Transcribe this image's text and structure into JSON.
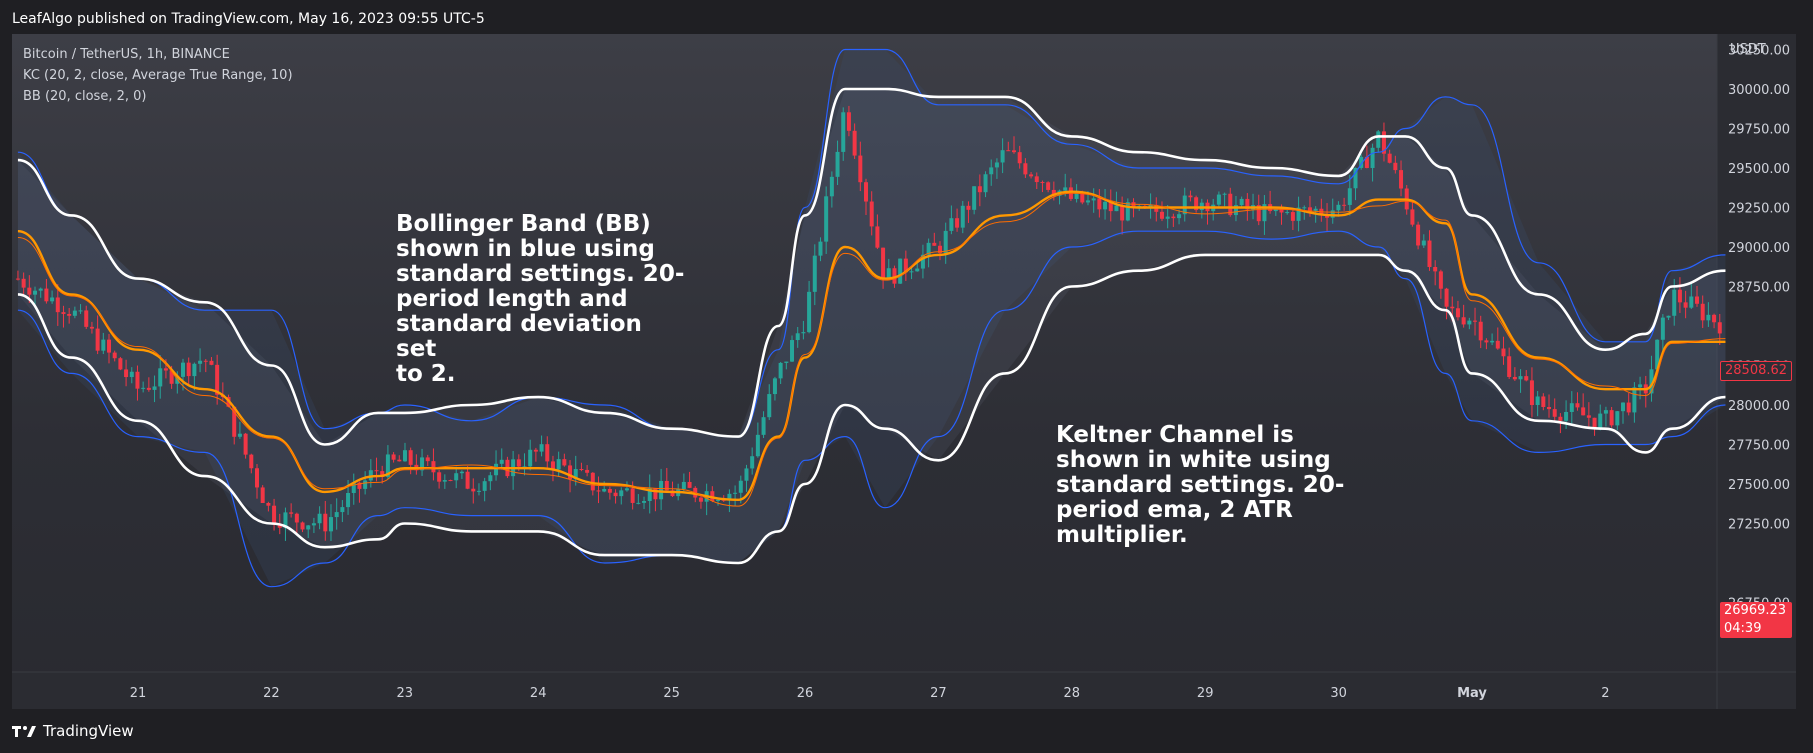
{
  "header": {
    "published": "LeafAlgo published on TradingView.com, May 16, 2023 09:55 UTC-5"
  },
  "legend": {
    "symbol": "Bitcoin / TetherUS, 1h, BINANCE",
    "kc": "KC (20, 2, close, Average True Range, 10)",
    "bb": "BB (20, close, 2, 0)"
  },
  "annotations": {
    "bb_note": "Bollinger Band (BB)\nshown in blue using\nstandard settings. 20-\nperiod length and\nstandard deviation set\nto 2.",
    "kc_note": "Keltner Channel is\nshown in white using\nstandard settings. 20-\nperiod ema, 2 ATR\nmultiplier."
  },
  "price_axis": {
    "unit": "USDT",
    "prev_close_label": "28508.62",
    "last_price_label": "26969.23",
    "countdown": "04:39"
  },
  "footer": {
    "brand": "TradingView"
  },
  "colors": {
    "up": "#26a69a",
    "down": "#f23645",
    "bb_band": "#2962ff",
    "kc_band": "#ffffff",
    "basis": "#ff9800",
    "panel_bg": "#2d2e35"
  },
  "chart_data": {
    "type": "line",
    "ylim": [
      26500,
      30500
    ],
    "y_ticks": [
      26750,
      27250,
      27500,
      27750,
      28000,
      28250,
      28750,
      29000,
      29250,
      29500,
      29750,
      30000,
      30250
    ],
    "x_ticks": [
      "21",
      "22",
      "23",
      "24",
      "25",
      "26",
      "27",
      "28",
      "29",
      "30",
      "May",
      "2"
    ],
    "x": [
      20.1,
      20.5,
      21,
      21.5,
      22,
      22.4,
      22.8,
      23,
      23.5,
      24,
      24.5,
      25,
      25.5,
      25.8,
      26,
      26.3,
      26.6,
      27,
      27.5,
      28,
      28.5,
      29,
      29.5,
      30,
      30.3,
      30.5,
      30.8,
      31,
      31.5,
      32,
      32.3,
      32.5,
      32.9
    ],
    "series": [
      {
        "name": "Price",
        "values": [
          28800,
          28600,
          28100,
          28300,
          27300,
          27250,
          27600,
          27650,
          27500,
          27700,
          27450,
          27450,
          27450,
          28200,
          28550,
          29900,
          28800,
          29000,
          29600,
          29300,
          29200,
          29300,
          29200,
          29250,
          29700,
          29300,
          28600,
          28550,
          28000,
          27900,
          28100,
          28700,
          28500
        ]
      },
      {
        "name": "KC Basis",
        "values": [
          29100,
          28700,
          28350,
          28100,
          27800,
          27450,
          27550,
          27600,
          27600,
          27600,
          27500,
          27450,
          27400,
          27800,
          28300,
          29000,
          28800,
          28950,
          29200,
          29350,
          29250,
          29250,
          29250,
          29200,
          29300,
          29300,
          29150,
          28700,
          28300,
          28100,
          28100,
          28400,
          28400
        ]
      },
      {
        "name": "KC Upper",
        "values": [
          29550,
          29200,
          28800,
          28650,
          28250,
          27750,
          27950,
          27950,
          28000,
          28050,
          27950,
          27850,
          27800,
          28500,
          29200,
          30000,
          30000,
          29950,
          29950,
          29700,
          29600,
          29550,
          29500,
          29450,
          29700,
          29700,
          29500,
          29200,
          28700,
          28350,
          28450,
          28750,
          28850
        ]
      },
      {
        "name": "KC Lower",
        "values": [
          28700,
          28300,
          27900,
          27550,
          27250,
          27100,
          27150,
          27250,
          27200,
          27200,
          27050,
          27050,
          27000,
          27200,
          27500,
          28000,
          27850,
          27650,
          28200,
          28750,
          28850,
          28950,
          28950,
          28950,
          28950,
          28850,
          28600,
          28200,
          27900,
          27850,
          27700,
          27850,
          28050
        ]
      },
      {
        "name": "BB Upper",
        "values": [
          29600,
          29200,
          28800,
          28600,
          28600,
          27850,
          27950,
          28000,
          27900,
          28050,
          28000,
          27850,
          27800,
          28350,
          29250,
          30250,
          30250,
          29900,
          29900,
          29650,
          29500,
          29500,
          29450,
          29400,
          29600,
          29750,
          29950,
          29900,
          28900,
          28400,
          28400,
          28850,
          28950
        ]
      },
      {
        "name": "BB Lower",
        "values": [
          28600,
          28200,
          27800,
          27700,
          26850,
          27000,
          27300,
          27350,
          27300,
          27300,
          27000,
          27050,
          27000,
          27200,
          27650,
          27800,
          27350,
          27800,
          28600,
          29000,
          29100,
          29100,
          29050,
          29100,
          29000,
          28800,
          28200,
          27900,
          27700,
          27750,
          27750,
          27800,
          28000
        ]
      }
    ]
  }
}
